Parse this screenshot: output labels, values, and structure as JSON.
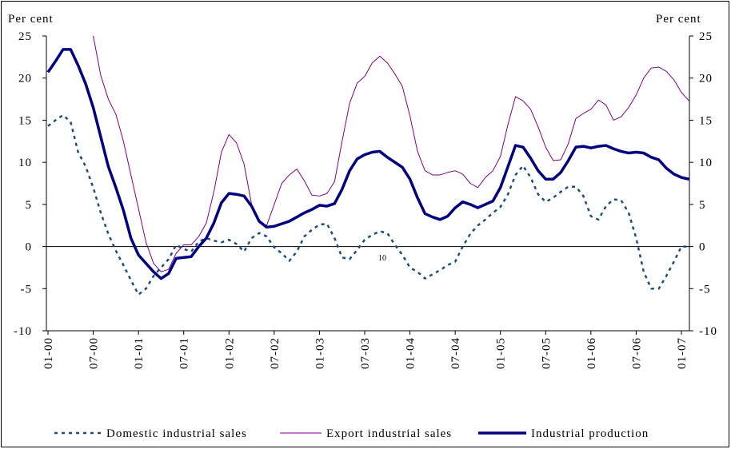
{
  "chart_data": {
    "type": "line",
    "ylabel": "Per cent",
    "y2label": "Per cent",
    "annotation": "10",
    "categories": [
      "01-00",
      null,
      null,
      null,
      null,
      null,
      "07-00",
      null,
      null,
      null,
      null,
      null,
      "01-01",
      null,
      null,
      null,
      null,
      null,
      "07-01",
      null,
      null,
      null,
      null,
      null,
      "01-02",
      null,
      null,
      null,
      null,
      null,
      "07-02",
      null,
      null,
      null,
      null,
      null,
      "01-03",
      null,
      null,
      null,
      null,
      null,
      "07-03",
      null,
      null,
      null,
      null,
      null,
      "01-04",
      null,
      null,
      null,
      null,
      null,
      "07-04",
      null,
      null,
      null,
      null,
      null,
      "01-05",
      null,
      null,
      null,
      null,
      null,
      "07-05",
      null,
      null,
      null,
      null,
      null,
      "01-06",
      null,
      null,
      null,
      null,
      null,
      "07-06",
      null,
      null,
      null,
      null,
      null,
      "01-07",
      null
    ],
    "ylim": [
      -10,
      25
    ],
    "yticks": [
      -10,
      -5,
      0,
      5,
      10,
      15,
      20,
      25
    ],
    "y2lim": [
      -10,
      25
    ],
    "y2ticks": [
      -10,
      -5,
      0,
      5,
      10,
      15,
      20,
      25
    ],
    "legend": "bottom",
    "series": [
      {
        "name": "Domestic industrial sales",
        "color": "#1f4e79",
        "style": "dotted",
        "values": [
          14.3,
          15,
          15.6,
          14.8,
          11.2,
          9.5,
          7,
          4,
          1.5,
          -0.5,
          -2.2,
          -4,
          -5.7,
          -5,
          -3.5,
          -2.5,
          -1.5,
          0.2,
          -0.3,
          -0.6,
          0.6,
          1,
          0.7,
          0.5,
          0.8,
          0.3,
          -0.6,
          1,
          1.6,
          1.2,
          -0.1,
          -0.8,
          -1.7,
          -0.6,
          1.2,
          2,
          2.6,
          2.7,
          1,
          -1.3,
          -1.5,
          -0.4,
          0.8,
          1.4,
          1.8,
          1.6,
          0.2,
          -1,
          -2.5,
          -3,
          -3.8,
          -3.3,
          -2.8,
          -2.2,
          -1.8,
          0,
          1.5,
          2.5,
          3.2,
          4,
          4.7,
          6.2,
          8.5,
          9.6,
          8.2,
          6.2,
          5.3,
          5.8,
          6.5,
          7.1,
          7.1,
          6,
          3.6,
          3.2,
          4.8,
          5.6,
          5.5,
          4,
          1,
          -3,
          -5,
          -5,
          -3.5,
          -1.8,
          0,
          0
        ]
      },
      {
        "name": "Export industrial sales",
        "color": "#800080",
        "style": "thin",
        "values": [
          null,
          null,
          null,
          null,
          null,
          null,
          25,
          20.3,
          17.5,
          15.7,
          12.5,
          8.5,
          4.5,
          0.5,
          -2,
          -3,
          -2.7,
          -0.8,
          0.2,
          0.2,
          1.2,
          2.8,
          6.5,
          11.2,
          13.3,
          12.3,
          9.8,
          5,
          3,
          2.5,
          5,
          7.5,
          8.5,
          9.2,
          7.8,
          6.1,
          6,
          6.3,
          7.7,
          12.5,
          17,
          19.4,
          20.2,
          21.8,
          22.6,
          21.8,
          20.5,
          19,
          15.5,
          11.3,
          9,
          8.5,
          8.5,
          8.8,
          9,
          8.6,
          7.5,
          7,
          8.2,
          9,
          10.7,
          14.5,
          17.8,
          17.3,
          16.3,
          14.2,
          11.8,
          10.2,
          10.3,
          12.2,
          15.2,
          15.8,
          16.3,
          17.4,
          16.8,
          15,
          15.4,
          16.5,
          18,
          20,
          21.2,
          21.3,
          20.8,
          19.8,
          18.3,
          17.3
        ]
      },
      {
        "name": "Industrial production",
        "color": "#000080",
        "style": "thick",
        "values": [
          20.7,
          22,
          23.4,
          23.4,
          21.5,
          19.3,
          16.5,
          13,
          9.5,
          7,
          4.3,
          1,
          -1,
          -2,
          -3,
          -3.8,
          -3.2,
          -1.4,
          -1.3,
          -1.2,
          0,
          1,
          2.8,
          5.2,
          6.3,
          6.2,
          6,
          4.8,
          3,
          2.3,
          2.4,
          2.7,
          3,
          3.5,
          4,
          4.4,
          4.9,
          4.8,
          5.1,
          6.8,
          9,
          10.4,
          10.9,
          11.2,
          11.3,
          10.6,
          10,
          9.4,
          8,
          5.8,
          3.9,
          3.5,
          3.2,
          3.6,
          4.6,
          5.3,
          5,
          4.6,
          5,
          5.4,
          7,
          9.5,
          12,
          11.8,
          10.5,
          9,
          8,
          8,
          8.8,
          10.2,
          11.8,
          11.9,
          11.7,
          11.9,
          12,
          11.6,
          11.3,
          11.1,
          11.2,
          11.1,
          10.6,
          10.3,
          9.3,
          8.6,
          8.2,
          8
        ]
      }
    ]
  }
}
